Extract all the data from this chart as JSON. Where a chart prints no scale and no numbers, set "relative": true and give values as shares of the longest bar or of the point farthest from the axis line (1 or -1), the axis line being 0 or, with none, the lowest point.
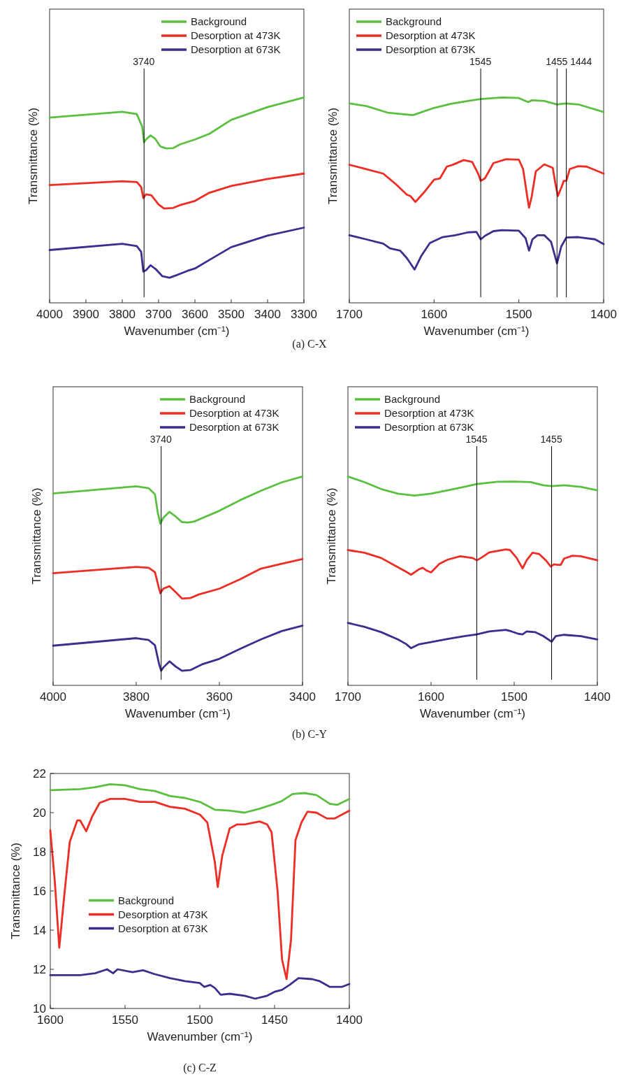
{
  "chart_data": [
    {
      "type": "line",
      "relative": true,
      "xlabel": "Wavenumber (cm⁻¹)",
      "ylabel": "Transmittance (%)",
      "xlim": [
        4000,
        3300
      ],
      "xticks": [
        4000,
        3900,
        3800,
        3700,
        3600,
        3500,
        3400,
        3300
      ],
      "legend": "top right",
      "annotations": [
        "(a) C-X"
      ],
      "ref_lines": [
        {
          "axis": "x",
          "value": 3740,
          "label": "3740"
        }
      ],
      "x": [
        4000,
        3800,
        3760,
        3745,
        3740,
        3735,
        3722,
        3710,
        3695,
        3680,
        3660,
        3640,
        3600,
        3560,
        3500,
        3400,
        3300
      ],
      "series": [
        {
          "name": "Background",
          "color": "#5bbf40",
          "values": [
            0.902,
            0.93,
            0.919,
            0.857,
            0.781,
            0.795,
            0.815,
            0.8,
            0.761,
            0.752,
            0.753,
            0.772,
            0.795,
            0.823,
            0.891,
            0.953,
            1
          ]
        },
        {
          "name": "Desorption at 473K",
          "color": "#ee2e24",
          "x": [
            4000,
            3800,
            3760,
            3748,
            3742,
            3735,
            3720,
            3700,
            3685,
            3660,
            3640,
            3600,
            3560,
            3500,
            3400,
            3300
          ],
          "values": [
            0.573,
            0.592,
            0.588,
            0.564,
            0.51,
            0.528,
            0.524,
            0.479,
            0.459,
            0.462,
            0.476,
            0.496,
            0.536,
            0.569,
            0.603,
            0.629
          ]
        },
        {
          "name": "Desorption at 673K",
          "color": "#3a2f8f",
          "x": [
            4000,
            3800,
            3760,
            3748,
            3742,
            3735,
            3722,
            3708,
            3690,
            3670,
            3650,
            3620,
            3600,
            3560,
            3500,
            3400,
            3300
          ],
          "values": [
            0.257,
            0.287,
            0.276,
            0.248,
            0.152,
            0.158,
            0.183,
            0.164,
            0.13,
            0.122,
            0.135,
            0.156,
            0.167,
            0.209,
            0.271,
            0.327,
            0.366
          ]
        }
      ]
    },
    {
      "type": "line",
      "relative": true,
      "xlabel": "Wavenumber (cm⁻¹)",
      "ylabel": "Transmittance (%)",
      "xlim": [
        1700,
        1400
      ],
      "xticks": [
        1700,
        1600,
        1500,
        1400
      ],
      "legend": "top left",
      "ref_lines": [
        {
          "axis": "x",
          "value": 1545,
          "label": "1545"
        },
        {
          "axis": "x",
          "value": 1455,
          "label": "1455"
        },
        {
          "axis": "x",
          "value": 1444,
          "label": "1444"
        }
      ],
      "series": [
        {
          "name": "Background",
          "color": "#5bbf40",
          "x": [
            1700,
            1680,
            1655,
            1640,
            1625,
            1600,
            1580,
            1560,
            1545,
            1520,
            1500,
            1489,
            1485,
            1470,
            1455,
            1445,
            1430,
            1400
          ],
          "values": [
            0.971,
            0.958,
            0.926,
            0.92,
            0.914,
            0.949,
            0.969,
            0.983,
            0.992,
            1,
            0.997,
            0.977,
            0.986,
            0.983,
            0.966,
            0.971,
            0.966,
            0.929
          ]
        },
        {
          "name": "Desorption at 473K",
          "color": "#ee2e24",
          "x": [
            1700,
            1680,
            1660,
            1645,
            1632,
            1628,
            1622,
            1612,
            1600,
            1593,
            1585,
            1578,
            1565,
            1555,
            1548,
            1545,
            1540,
            1530,
            1515,
            1500,
            1495,
            1490,
            1488,
            1485,
            1480,
            1470,
            1460,
            1457,
            1454,
            1450,
            1447,
            1444,
            1440,
            1430,
            1420,
            1400
          ],
          "values": [
            0.672,
            0.651,
            0.629,
            0.577,
            0.526,
            0.52,
            0.491,
            0.537,
            0.6,
            0.606,
            0.663,
            0.672,
            0.695,
            0.686,
            0.629,
            0.594,
            0.606,
            0.68,
            0.699,
            0.697,
            0.651,
            0.514,
            0.463,
            0.514,
            0.64,
            0.674,
            0.657,
            0.583,
            0.52,
            0.56,
            0.594,
            0.594,
            0.651,
            0.665,
            0.663,
            0.629
          ]
        },
        {
          "name": "Desorption at 673K",
          "color": "#3a2f8f",
          "x": [
            1700,
            1680,
            1660,
            1652,
            1640,
            1632,
            1623,
            1615,
            1605,
            1590,
            1575,
            1560,
            1550,
            1545,
            1540,
            1530,
            1520,
            1500,
            1492,
            1488,
            1484,
            1478,
            1470,
            1462,
            1455,
            1450,
            1444,
            1430,
            1410,
            1400
          ],
          "values": [
            0.329,
            0.309,
            0.288,
            0.265,
            0.254,
            0.217,
            0.162,
            0.229,
            0.291,
            0.32,
            0.329,
            0.343,
            0.345,
            0.309,
            0.326,
            0.349,
            0.354,
            0.351,
            0.314,
            0.254,
            0.309,
            0.329,
            0.329,
            0.297,
            0.192,
            0.274,
            0.318,
            0.32,
            0.309,
            0.286
          ]
        }
      ]
    },
    {
      "type": "line",
      "relative": true,
      "xlabel": "Wavenumber (cm⁻¹)",
      "ylabel": "Transmittance (%)",
      "xlim": [
        4000,
        3400
      ],
      "xticks": [
        4000,
        3800,
        3600,
        3400
      ],
      "legend": "top right",
      "annotations": [
        "(b) C-Y"
      ],
      "ref_lines": [
        {
          "axis": "x",
          "value": 3740,
          "label": "3740"
        }
      ],
      "series": [
        {
          "name": "Background",
          "color": "#5bbf40",
          "x": [
            4000,
            3800,
            3770,
            3755,
            3748,
            3742,
            3735,
            3720,
            3705,
            3690,
            3675,
            3660,
            3640,
            3600,
            3550,
            3500,
            3450,
            3400
          ],
          "values": [
            0.919,
            0.953,
            0.944,
            0.915,
            0.825,
            0.774,
            0.802,
            0.831,
            0.808,
            0.782,
            0.78,
            0.785,
            0.802,
            0.836,
            0.887,
            0.932,
            0.972,
            1
          ]
        },
        {
          "name": "Desorption at 473K",
          "color": "#ee2e24",
          "x": [
            4000,
            3800,
            3770,
            3755,
            3745,
            3742,
            3735,
            3720,
            3705,
            3690,
            3670,
            3650,
            3600,
            3550,
            3500,
            3450,
            3400
          ],
          "values": [
            0.537,
            0.567,
            0.563,
            0.542,
            0.463,
            0.441,
            0.463,
            0.475,
            0.446,
            0.416,
            0.418,
            0.435,
            0.463,
            0.508,
            0.559,
            0.582,
            0.605
          ]
        },
        {
          "name": "Desorption at 673K",
          "color": "#3a2f8f",
          "x": [
            4000,
            3800,
            3770,
            3755,
            3745,
            3740,
            3735,
            3720,
            3705,
            3690,
            3670,
            3640,
            3600,
            3550,
            3500,
            3450,
            3400
          ],
          "values": [
            0.19,
            0.226,
            0.217,
            0.192,
            0.102,
            0.07,
            0.085,
            0.115,
            0.09,
            0.07,
            0.073,
            0.102,
            0.127,
            0.175,
            0.22,
            0.26,
            0.286
          ]
        }
      ]
    },
    {
      "type": "line",
      "relative": true,
      "xlabel": "Wavenumber (cm⁻¹)",
      "ylabel": "Transmittance (%)",
      "xlim": [
        1700,
        1400
      ],
      "xticks": [
        1700,
        1600,
        1500,
        1400
      ],
      "legend": "top left",
      "ref_lines": [
        {
          "axis": "x",
          "value": 1545,
          "label": "1545"
        },
        {
          "axis": "x",
          "value": 1455,
          "label": "1455"
        }
      ],
      "series": [
        {
          "name": "Background",
          "color": "#5bbf40",
          "x": [
            1700,
            1680,
            1660,
            1640,
            1620,
            1600,
            1580,
            1560,
            1545,
            1520,
            1500,
            1480,
            1465,
            1455,
            1440,
            1420,
            1400
          ],
          "values": [
            1,
            0.973,
            0.94,
            0.918,
            0.909,
            0.918,
            0.934,
            0.951,
            0.964,
            0.975,
            0.976,
            0.973,
            0.958,
            0.954,
            0.958,
            0.951,
            0.934
          ]
        },
        {
          "name": "Desorption at 473K",
          "color": "#ee2e24",
          "x": [
            1700,
            1680,
            1660,
            1640,
            1630,
            1624,
            1615,
            1610,
            1605,
            1600,
            1590,
            1580,
            1565,
            1550,
            1545,
            1540,
            1530,
            1510,
            1505,
            1497,
            1490,
            1485,
            1478,
            1470,
            1462,
            1456,
            1452,
            1448,
            1444,
            1440,
            1430,
            1420,
            1400
          ],
          "values": [
            0.648,
            0.635,
            0.61,
            0.566,
            0.544,
            0.53,
            0.555,
            0.563,
            0.549,
            0.541,
            0.582,
            0.602,
            0.618,
            0.61,
            0.599,
            0.61,
            0.637,
            0.651,
            0.648,
            0.61,
            0.56,
            0.599,
            0.635,
            0.629,
            0.599,
            0.569,
            0.58,
            0.577,
            0.577,
            0.607,
            0.621,
            0.618,
            0.599
          ]
        },
        {
          "name": "Desorption at 673K",
          "color": "#3a2f8f",
          "x": [
            1700,
            1680,
            1660,
            1640,
            1630,
            1624,
            1615,
            1600,
            1580,
            1560,
            1545,
            1530,
            1510,
            1503,
            1495,
            1490,
            1485,
            1475,
            1465,
            1455,
            1450,
            1440,
            1420,
            1400
          ],
          "values": [
            0.299,
            0.28,
            0.255,
            0.22,
            0.198,
            0.178,
            0.196,
            0.207,
            0.222,
            0.236,
            0.244,
            0.258,
            0.266,
            0.258,
            0.247,
            0.244,
            0.258,
            0.255,
            0.236,
            0.209,
            0.236,
            0.242,
            0.236,
            0.22
          ]
        }
      ]
    },
    {
      "type": "line",
      "xlabel": "Wavenumber (cm⁻¹)",
      "ylabel": "Transmittance (%)",
      "xlim": [
        1600,
        1400
      ],
      "xticks": [
        1600,
        1550,
        1500,
        1450,
        1400
      ],
      "ylim": [
        10,
        22
      ],
      "yticks": [
        10,
        12,
        14,
        16,
        18,
        20,
        22
      ],
      "legend": "left",
      "annotations": [
        "(c) C-Z"
      ],
      "series": [
        {
          "name": "Background",
          "color": "#5bbf40",
          "x": [
            1600,
            1580,
            1570,
            1560,
            1550,
            1540,
            1530,
            1520,
            1510,
            1500,
            1490,
            1480,
            1470,
            1460,
            1450,
            1445,
            1438,
            1430,
            1422,
            1413,
            1408,
            1400
          ],
          "values": [
            21.15,
            21.2,
            21.3,
            21.45,
            21.4,
            21.2,
            21.1,
            20.85,
            20.75,
            20.55,
            20.15,
            20.1,
            20.0,
            20.2,
            20.45,
            20.6,
            20.95,
            21.0,
            20.9,
            20.45,
            20.4,
            20.7
          ]
        },
        {
          "name": "Desorption at 473K",
          "color": "#ee2e24",
          "x": [
            1600,
            1597,
            1594,
            1591,
            1587,
            1582,
            1580,
            1576,
            1572,
            1567,
            1560,
            1550,
            1540,
            1530,
            1520,
            1510,
            1500,
            1495,
            1490,
            1488,
            1485,
            1480,
            1475,
            1470,
            1460,
            1455,
            1452,
            1448,
            1445,
            1442,
            1439,
            1436,
            1432,
            1428,
            1422,
            1415,
            1410,
            1400
          ],
          "values": [
            19.1,
            16.5,
            13.1,
            15.5,
            18.5,
            19.6,
            19.6,
            19.05,
            19.8,
            20.5,
            20.7,
            20.7,
            20.55,
            20.55,
            20.3,
            20.2,
            19.9,
            19.5,
            17.5,
            16.2,
            17.8,
            19.2,
            19.4,
            19.4,
            19.55,
            19.4,
            19.0,
            16.0,
            12.5,
            11.5,
            13.5,
            18.6,
            19.5,
            20.05,
            20.0,
            19.7,
            19.7,
            20.1
          ]
        },
        {
          "name": "Desorption at 673K",
          "color": "#3a2f8f",
          "x": [
            1600,
            1580,
            1570,
            1562,
            1558,
            1555,
            1545,
            1538,
            1530,
            1520,
            1510,
            1500,
            1497,
            1493,
            1490,
            1486,
            1480,
            1470,
            1463,
            1455,
            1450,
            1445,
            1440,
            1434,
            1425,
            1420,
            1413,
            1405,
            1400
          ],
          "values": [
            11.7,
            11.7,
            11.8,
            12.0,
            11.8,
            12.0,
            11.85,
            11.95,
            11.75,
            11.55,
            11.4,
            11.3,
            11.1,
            11.2,
            11.05,
            10.7,
            10.75,
            10.65,
            10.5,
            10.65,
            10.85,
            10.95,
            11.2,
            11.55,
            11.5,
            11.4,
            11.1,
            11.1,
            11.25
          ]
        }
      ]
    }
  ]
}
